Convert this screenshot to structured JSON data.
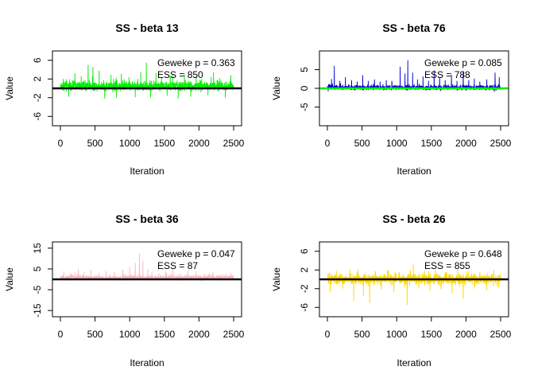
{
  "chart_data": [
    {
      "type": "line",
      "title": "SS - beta 13",
      "xlabel": "Iteration",
      "ylabel": "Value",
      "xlim": [
        0,
        2500
      ],
      "ylim": [
        -8,
        8
      ],
      "xticks": [
        "0",
        "500",
        "1000",
        "1500",
        "2000",
        "2500"
      ],
      "yticks": [
        "-6",
        "-2",
        "2",
        "6"
      ],
      "yticks_values": [
        -6,
        -2,
        2,
        6
      ],
      "series_color": "#00ee00",
      "reference_line": {
        "y": 0,
        "color": "#000000"
      },
      "annotations": [
        "Geweke p = 0.363",
        "ESS = 850"
      ],
      "trace": {
        "n": 2500,
        "center": 0.5,
        "noise": 0.6,
        "spikes": [
          [
            40,
            2
          ],
          [
            120,
            -1.8
          ],
          [
            210,
            3.2
          ],
          [
            300,
            2.6
          ],
          [
            400,
            5.0
          ],
          [
            470,
            4.6
          ],
          [
            560,
            3.8
          ],
          [
            640,
            -2.2
          ],
          [
            730,
            2.9
          ],
          [
            810,
            -2.0
          ],
          [
            880,
            3.1
          ],
          [
            990,
            2.4
          ],
          [
            1080,
            -1.9
          ],
          [
            1160,
            3.5
          ],
          [
            1240,
            5.5
          ],
          [
            1300,
            -2.0
          ],
          [
            1380,
            3.3
          ],
          [
            1460,
            2.5
          ],
          [
            1540,
            -1.6
          ],
          [
            1620,
            2.8
          ],
          [
            1700,
            -2.2
          ],
          [
            1790,
            3.0
          ],
          [
            1880,
            -1.8
          ],
          [
            1960,
            2.6
          ],
          [
            2040,
            2.0
          ],
          [
            2130,
            -1.5
          ],
          [
            2210,
            3.4
          ],
          [
            2300,
            2.2
          ],
          [
            2380,
            -2.0
          ],
          [
            2460,
            2.8
          ]
        ]
      }
    },
    {
      "type": "line",
      "title": "SS - beta 76",
      "xlabel": "Iteration",
      "ylabel": "Value",
      "xlim": [
        0,
        2500
      ],
      "ylim": [
        -10,
        10
      ],
      "xticks": [
        "0",
        "500",
        "1000",
        "1500",
        "2000",
        "2500"
      ],
      "yticks": [
        "-5",
        "0",
        "5"
      ],
      "yticks_values": [
        -5,
        0,
        5
      ],
      "series_color": "#0000cd",
      "reference_line": {
        "y": 0,
        "color": "#00ee00"
      },
      "annotations": [
        "Geweke p = 0.085",
        "ESS = 788"
      ],
      "trace": {
        "n": 2500,
        "center": 0.2,
        "noise": 0.4,
        "spikes": [
          [
            60,
            2.5
          ],
          [
            100,
            6.0
          ],
          [
            180,
            2.0
          ],
          [
            260,
            3.0
          ],
          [
            350,
            2.2
          ],
          [
            430,
            1.8
          ],
          [
            510,
            3.5
          ],
          [
            590,
            2.0
          ],
          [
            680,
            2.4
          ],
          [
            760,
            1.8
          ],
          [
            850,
            2.2
          ],
          [
            930,
            2.0
          ],
          [
            1050,
            5.8
          ],
          [
            1120,
            4.0
          ],
          [
            1160,
            7.5
          ],
          [
            1230,
            4.2
          ],
          [
            1300,
            2.4
          ],
          [
            1380,
            3.2
          ],
          [
            1460,
            2.0
          ],
          [
            1540,
            4.8
          ],
          [
            1620,
            3.0
          ],
          [
            1700,
            2.2
          ],
          [
            1790,
            3.6
          ],
          [
            1870,
            2.0
          ],
          [
            1960,
            4.6
          ],
          [
            2040,
            2.2
          ],
          [
            2120,
            2.6
          ],
          [
            2200,
            1.8
          ],
          [
            2300,
            2.4
          ],
          [
            2420,
            4.2
          ],
          [
            2480,
            3.0
          ]
        ]
      }
    },
    {
      "type": "line",
      "title": "SS - beta 36",
      "xlabel": "Iteration",
      "ylabel": "Value",
      "xlim": [
        0,
        2500
      ],
      "ylim": [
        -18,
        18
      ],
      "xticks": [
        "0",
        "500",
        "1000",
        "1500",
        "2000",
        "2500"
      ],
      "yticks": [
        "-15",
        "-5",
        "5",
        "15"
      ],
      "yticks_values": [
        -15,
        -5,
        5,
        15
      ],
      "series_color": "#ffb6c1",
      "reference_line": {
        "y": 0,
        "color": "#000000"
      },
      "annotations": [
        "Geweke p = 0.047",
        "ESS = 87"
      ],
      "trace": {
        "n": 2500,
        "center": 0.8,
        "noise": 0.7,
        "spikes": [
          [
            50,
            4.0
          ],
          [
            150,
            3.0
          ],
          [
            260,
            5.0
          ],
          [
            340,
            3.5
          ],
          [
            440,
            4.5
          ],
          [
            560,
            3.2
          ],
          [
            660,
            4.0
          ],
          [
            780,
            3.6
          ],
          [
            900,
            4.8
          ],
          [
            1000,
            6.0
          ],
          [
            1080,
            8.0
          ],
          [
            1140,
            12.5
          ],
          [
            1190,
            9.0
          ],
          [
            1260,
            5.0
          ],
          [
            1320,
            3.5
          ],
          [
            1420,
            3.0
          ],
          [
            1520,
            4.0
          ],
          [
            1620,
            5.2
          ],
          [
            1720,
            3.0
          ],
          [
            1840,
            4.2
          ],
          [
            1960,
            3.6
          ],
          [
            2080,
            2.8
          ],
          [
            2200,
            3.4
          ],
          [
            2340,
            2.6
          ],
          [
            2460,
            3.2
          ]
        ]
      }
    },
    {
      "type": "line",
      "title": "SS - beta 26",
      "xlabel": "Iteration",
      "ylabel": "Value",
      "xlim": [
        0,
        2500
      ],
      "ylim": [
        -8,
        8
      ],
      "xticks": [
        "0",
        "500",
        "1000",
        "1500",
        "2000",
        "2500"
      ],
      "yticks": [
        "-6",
        "-2",
        "2",
        "6"
      ],
      "yticks_values": [
        -6,
        -2,
        2,
        6
      ],
      "series_color": "#ffd700",
      "reference_line": {
        "y": 0,
        "color": "#000000"
      },
      "annotations": [
        "Geweke p = 0.648",
        "ESS = 855"
      ],
      "trace": {
        "n": 2500,
        "center": 0.0,
        "noise": 0.7,
        "spikes": [
          [
            40,
            -2.8
          ],
          [
            130,
            1.8
          ],
          [
            220,
            -2.0
          ],
          [
            330,
            2.0
          ],
          [
            380,
            -4.6
          ],
          [
            440,
            2.2
          ],
          [
            520,
            -3.5
          ],
          [
            610,
            -5.0
          ],
          [
            690,
            1.8
          ],
          [
            780,
            -2.2
          ],
          [
            880,
            2.0
          ],
          [
            960,
            -2.8
          ],
          [
            1040,
            1.6
          ],
          [
            1150,
            -5.5
          ],
          [
            1240,
            3.2
          ],
          [
            1320,
            -2.0
          ],
          [
            1400,
            1.8
          ],
          [
            1480,
            -2.4
          ],
          [
            1560,
            2.0
          ],
          [
            1640,
            -2.2
          ],
          [
            1720,
            1.6
          ],
          [
            1800,
            -3.0
          ],
          [
            1880,
            2.2
          ],
          [
            1960,
            -4.2
          ],
          [
            2040,
            1.8
          ],
          [
            2120,
            -2.0
          ],
          [
            2200,
            1.6
          ],
          [
            2300,
            -2.4
          ],
          [
            2400,
            2.0
          ],
          [
            2470,
            -1.8
          ]
        ]
      }
    }
  ]
}
